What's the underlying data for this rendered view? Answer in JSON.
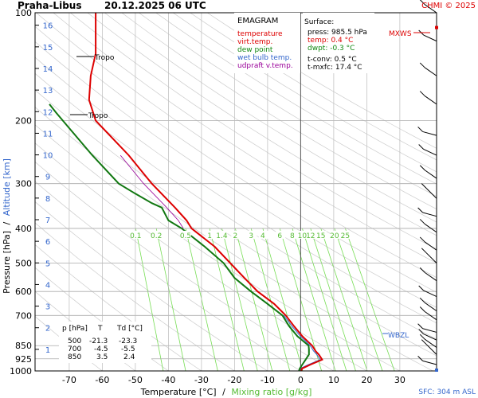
{
  "header": {
    "station": "Praha-Libus",
    "datetime": "20.12.2025 06 UTC",
    "copyright": "CHMI © 2025"
  },
  "legend": {
    "title": "EMAGRAM",
    "items": [
      {
        "label": "temperature",
        "color": "#dd0000"
      },
      {
        "label": "virt.temp.",
        "color": "#dd0000"
      },
      {
        "label": "dew point",
        "color": "#008800"
      },
      {
        "label": "wet bulb temp.",
        "color": "#3366cc"
      },
      {
        "label": "udpraft v.temp.",
        "color": "#990099"
      }
    ]
  },
  "surface": {
    "title": "Surface:",
    "press": "press: 985.5 hPa",
    "temp": "temp: 0.4 °C",
    "dwpt": "dwpt: -0.3 °C",
    "tconv": "t-conv: 0.5 °C",
    "tmxfc": "t-mxfc: 17.4 °C"
  },
  "markers": {
    "mxws": "MXWS",
    "tropo1": "Tropo",
    "tropo2": "Tropo",
    "wbzl": "WBZL",
    "sfc": "SFC: 304 m ASL"
  },
  "table": {
    "headers": [
      "p [hPa]",
      "T",
      "Td [°C]"
    ],
    "rows": [
      [
        "500",
        "-21.3",
        "-23.3"
      ],
      [
        "700",
        "-4.5",
        "-5.5"
      ],
      [
        "850",
        "3.5",
        "2.4"
      ]
    ]
  },
  "axes": {
    "ylabel_pressure": "Pressure [hPa]",
    "ylabel_sep": "/",
    "ylabel_altitude": "Altitude [km]",
    "xlabel_temp": "Temperature [°C]",
    "xlabel_sep": "/",
    "xlabel_mix": "Mixing ratio [g/kg]"
  },
  "colors": {
    "temperature": "#dd0000",
    "dewpoint": "#117711",
    "wetbulb": "#3366cc",
    "parcel": "#990099",
    "mixing": "#77dd55",
    "altitude": "#3366cc"
  },
  "chart_data": {
    "type": "line",
    "x_axis": {
      "label": "Temperature [°C]",
      "range": [
        -80,
        35
      ],
      "ticks": [
        -70,
        -60,
        -50,
        -40,
        -30,
        -20,
        -10,
        0,
        10,
        20,
        30
      ]
    },
    "y_axis": {
      "label": "Pressure [hPa]",
      "scale": "log",
      "range": [
        1000,
        100
      ],
      "ticks": [
        100,
        200,
        300,
        400,
        500,
        600,
        700,
        850,
        925,
        1000
      ]
    },
    "altitude_ticks_km": [
      1,
      2,
      3,
      4,
      5,
      6,
      7,
      8,
      9,
      10,
      11,
      12,
      13,
      14,
      15,
      16
    ],
    "mixing_ratio_labels": [
      "0.1",
      "0.2",
      "0.5",
      "1",
      "1.4",
      "2",
      "3",
      "4",
      "6",
      "8",
      "10",
      "12",
      "15",
      "20",
      "25"
    ],
    "series": [
      {
        "name": "temperature",
        "points": [
          [
            1000,
            0.2
          ],
          [
            985,
            0.4
          ],
          [
            960,
            3
          ],
          [
            930,
            6.5
          ],
          [
            915,
            6
          ],
          [
            900,
            5.5
          ],
          [
            880,
            4.5
          ],
          [
            850,
            3.5
          ],
          [
            800,
            0.5
          ],
          [
            750,
            -2
          ],
          [
            700,
            -4.5
          ],
          [
            650,
            -8
          ],
          [
            600,
            -13
          ],
          [
            550,
            -17
          ],
          [
            500,
            -21.3
          ],
          [
            450,
            -26
          ],
          [
            400,
            -33
          ],
          [
            380,
            -34.5
          ],
          [
            350,
            -38
          ],
          [
            300,
            -45
          ],
          [
            250,
            -52
          ],
          [
            200,
            -62
          ],
          [
            175,
            -64
          ],
          [
            150,
            -63.5
          ],
          [
            130,
            -62
          ],
          [
            120,
            -62
          ],
          [
            100,
            -62
          ]
        ]
      },
      {
        "name": "dew point",
        "points": [
          [
            1000,
            -0.5
          ],
          [
            985,
            -0.3
          ],
          [
            960,
            0.5
          ],
          [
            930,
            1.5
          ],
          [
            900,
            2.5
          ],
          [
            870,
            2.5
          ],
          [
            850,
            2.4
          ],
          [
            800,
            -1
          ],
          [
            750,
            -3.5
          ],
          [
            700,
            -5.5
          ],
          [
            650,
            -10
          ],
          [
            600,
            -15
          ],
          [
            550,
            -20
          ],
          [
            500,
            -23.3
          ],
          [
            450,
            -29
          ],
          [
            400,
            -36
          ],
          [
            380,
            -40
          ],
          [
            350,
            -42
          ],
          [
            340,
            -45
          ],
          [
            320,
            -50
          ],
          [
            300,
            -55
          ],
          [
            250,
            -63
          ],
          [
            210,
            -70
          ],
          [
            190,
            -74
          ],
          [
            180,
            -76
          ]
        ]
      }
    ]
  }
}
